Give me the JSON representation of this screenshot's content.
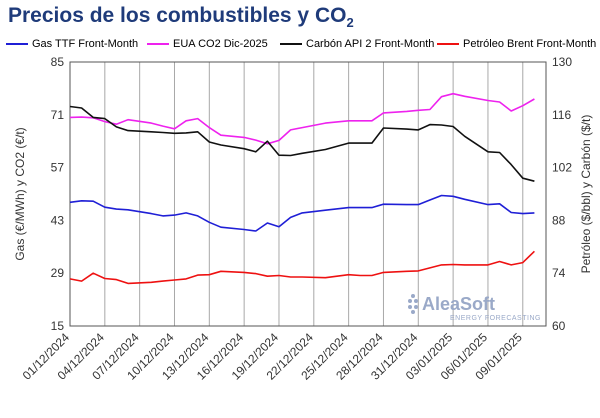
{
  "title": {
    "main": "Precios de los combustibles y CO",
    "sub": "2"
  },
  "watermark": {
    "brand": "AleaSoft",
    "tagline": "ENERGY FORECASTING"
  },
  "chart_data": {
    "type": "line",
    "title": "Precios de los combustibles y CO2",
    "legend_position": "top",
    "grid": {
      "x": true,
      "y": false
    },
    "y_left": {
      "label": "Gas (€/MWh) y CO2 (€/t)",
      "range": [
        15,
        85
      ],
      "ticks": [
        "15",
        "29",
        "43",
        "57",
        "71",
        "85"
      ]
    },
    "y_right": {
      "label": "Petróleo ($/bbl) y Carbón ($/t)",
      "range": [
        60,
        130
      ],
      "ticks": [
        "60",
        "74",
        "88",
        "102",
        "116",
        "130"
      ]
    },
    "x_range": [
      "2024-12-01",
      "2025-01-11"
    ],
    "x_ticks": [
      "01/12/2024",
      "04/12/2024",
      "07/12/2024",
      "10/12/2024",
      "13/12/2024",
      "16/12/2024",
      "19/12/2024",
      "22/12/2024",
      "25/12/2024",
      "28/12/2024",
      "31/12/2024",
      "03/01/2025",
      "06/01/2025",
      "09/01/2025"
    ],
    "series": [
      {
        "name": "Gas TTF Front-Month",
        "color": "#1f1fd6",
        "axis": "left",
        "points": [
          [
            "2024-12-01",
            47.8
          ],
          [
            "2024-12-02",
            48.2
          ],
          [
            "2024-12-03",
            48.1
          ],
          [
            "2024-12-04",
            46.5
          ],
          [
            "2024-12-05",
            46
          ],
          [
            "2024-12-06",
            45.8
          ],
          [
            "2024-12-08",
            44.8
          ],
          [
            "2024-12-09",
            44.2
          ],
          [
            "2024-12-10",
            44.4
          ],
          [
            "2024-12-11",
            45
          ],
          [
            "2024-12-12",
            44.2
          ],
          [
            "2024-12-13",
            42.5
          ],
          [
            "2024-12-14",
            41.2
          ],
          [
            "2024-12-16",
            40.6
          ],
          [
            "2024-12-17",
            40.2
          ],
          [
            "2024-12-18",
            42.3
          ],
          [
            "2024-12-19",
            41.3
          ],
          [
            "2024-12-20",
            43.8
          ],
          [
            "2024-12-21",
            45
          ],
          [
            "2024-12-23",
            45.7
          ],
          [
            "2024-12-25",
            46.4
          ],
          [
            "2024-12-26",
            46.4
          ],
          [
            "2024-12-27",
            46.4
          ],
          [
            "2024-12-28",
            47.3
          ],
          [
            "2024-12-30",
            47.2
          ],
          [
            "2024-12-31",
            47.2
          ],
          [
            "2025-01-01",
            48.4
          ],
          [
            "2025-01-02",
            49.6
          ],
          [
            "2025-01-03",
            49.4
          ],
          [
            "2025-01-04",
            48.6
          ],
          [
            "2025-01-06",
            47.2
          ],
          [
            "2025-01-07",
            47.4
          ],
          [
            "2025-01-08",
            45.1
          ],
          [
            "2025-01-09",
            44.8
          ],
          [
            "2025-01-10",
            45.0
          ]
        ]
      },
      {
        "name": "EUA CO2 Dic-2025",
        "color": "#ee22ee",
        "axis": "left",
        "points": [
          [
            "2024-12-01",
            70.3
          ],
          [
            "2024-12-02",
            70.4
          ],
          [
            "2024-12-03",
            70.2
          ],
          [
            "2024-12-04",
            69.2
          ],
          [
            "2024-12-05",
            68.5
          ],
          [
            "2024-12-06",
            69.7
          ],
          [
            "2024-12-08",
            68.8
          ],
          [
            "2024-12-09",
            68
          ],
          [
            "2024-12-10",
            67.3
          ],
          [
            "2024-12-11",
            69.4
          ],
          [
            "2024-12-12",
            70
          ],
          [
            "2024-12-13",
            67.6
          ],
          [
            "2024-12-14",
            65.6
          ],
          [
            "2024-12-16",
            65
          ],
          [
            "2024-12-17",
            64.3
          ],
          [
            "2024-12-18",
            63.3
          ],
          [
            "2024-12-19",
            64.2
          ],
          [
            "2024-12-20",
            67
          ],
          [
            "2024-12-21",
            67.6
          ],
          [
            "2024-12-23",
            68.8
          ],
          [
            "2024-12-25",
            69.4
          ],
          [
            "2024-12-26",
            69.4
          ],
          [
            "2024-12-27",
            69.4
          ],
          [
            "2024-12-28",
            71.5
          ],
          [
            "2024-12-30",
            71.9
          ],
          [
            "2024-12-31",
            72.2
          ],
          [
            "2025-01-01",
            72.4
          ],
          [
            "2025-01-02",
            75.8
          ],
          [
            "2025-01-03",
            76.6
          ],
          [
            "2025-01-04",
            75.9
          ],
          [
            "2025-01-06",
            74.8
          ],
          [
            "2025-01-07",
            74.4
          ],
          [
            "2025-01-08",
            72
          ],
          [
            "2025-01-09",
            73.4
          ],
          [
            "2025-01-10",
            75.2
          ]
        ]
      },
      {
        "name": "Carbón API 2 Front-Month",
        "color": "#111111",
        "axis": "right",
        "points": [
          [
            "2024-12-01",
            118.2
          ],
          [
            "2024-12-02",
            117.8
          ],
          [
            "2024-12-03",
            115.3
          ],
          [
            "2024-12-04",
            115
          ],
          [
            "2024-12-05",
            112.8
          ],
          [
            "2024-12-06",
            111.8
          ],
          [
            "2024-12-08",
            111.5
          ],
          [
            "2024-12-09",
            111.3
          ],
          [
            "2024-12-10",
            111.1
          ],
          [
            "2024-12-11",
            111.2
          ],
          [
            "2024-12-12",
            111.5
          ],
          [
            "2024-12-13",
            108.8
          ],
          [
            "2024-12-14",
            108
          ],
          [
            "2024-12-16",
            107
          ],
          [
            "2024-12-17",
            106.2
          ],
          [
            "2024-12-18",
            109
          ],
          [
            "2024-12-19",
            105.3
          ],
          [
            "2024-12-20",
            105.2
          ],
          [
            "2024-12-21",
            105.8
          ],
          [
            "2024-12-23",
            106.8
          ],
          [
            "2024-12-25",
            108.5
          ],
          [
            "2024-12-26",
            108.5
          ],
          [
            "2024-12-27",
            108.5
          ],
          [
            "2024-12-28",
            112.5
          ],
          [
            "2024-12-30",
            112.2
          ],
          [
            "2024-12-31",
            112
          ],
          [
            "2025-01-01",
            113.4
          ],
          [
            "2025-01-02",
            113.3
          ],
          [
            "2025-01-03",
            112.9
          ],
          [
            "2025-01-04",
            110.3
          ],
          [
            "2025-01-06",
            106.2
          ],
          [
            "2025-01-07",
            106
          ],
          [
            "2025-01-08",
            102.8
          ],
          [
            "2025-01-09",
            99.2
          ],
          [
            "2025-01-10",
            98.4
          ]
        ]
      },
      {
        "name": "Petróleo Brent Front-Month",
        "color": "#ee1111",
        "axis": "right",
        "points": [
          [
            "2024-12-01",
            72.5
          ],
          [
            "2024-12-02",
            71.9
          ],
          [
            "2024-12-03",
            74
          ],
          [
            "2024-12-04",
            72.6
          ],
          [
            "2024-12-05",
            72.3
          ],
          [
            "2024-12-06",
            71.3
          ],
          [
            "2024-12-08",
            71.6
          ],
          [
            "2024-12-09",
            71.9
          ],
          [
            "2024-12-10",
            72.2
          ],
          [
            "2024-12-11",
            72.5
          ],
          [
            "2024-12-12",
            73.5
          ],
          [
            "2024-12-13",
            73.6
          ],
          [
            "2024-12-14",
            74.5
          ],
          [
            "2024-12-16",
            74.2
          ],
          [
            "2024-12-17",
            73.9
          ],
          [
            "2024-12-18",
            73.2
          ],
          [
            "2024-12-19",
            73.4
          ],
          [
            "2024-12-20",
            73.0
          ],
          [
            "2024-12-21",
            73.0
          ],
          [
            "2024-12-23",
            72.8
          ],
          [
            "2024-12-25",
            73.6
          ],
          [
            "2024-12-26",
            73.4
          ],
          [
            "2024-12-27",
            73.4
          ],
          [
            "2024-12-28",
            74.2
          ],
          [
            "2024-12-30",
            74.5
          ],
          [
            "2024-12-31",
            74.6
          ],
          [
            "2025-01-01",
            75.4
          ],
          [
            "2025-01-02",
            76.2
          ],
          [
            "2025-01-03",
            76.3
          ],
          [
            "2025-01-04",
            76.2
          ],
          [
            "2025-01-06",
            76.2
          ],
          [
            "2025-01-07",
            77.1
          ],
          [
            "2025-01-08",
            76.2
          ],
          [
            "2025-01-09",
            76.8
          ],
          [
            "2025-01-10",
            79.8
          ]
        ]
      }
    ]
  }
}
